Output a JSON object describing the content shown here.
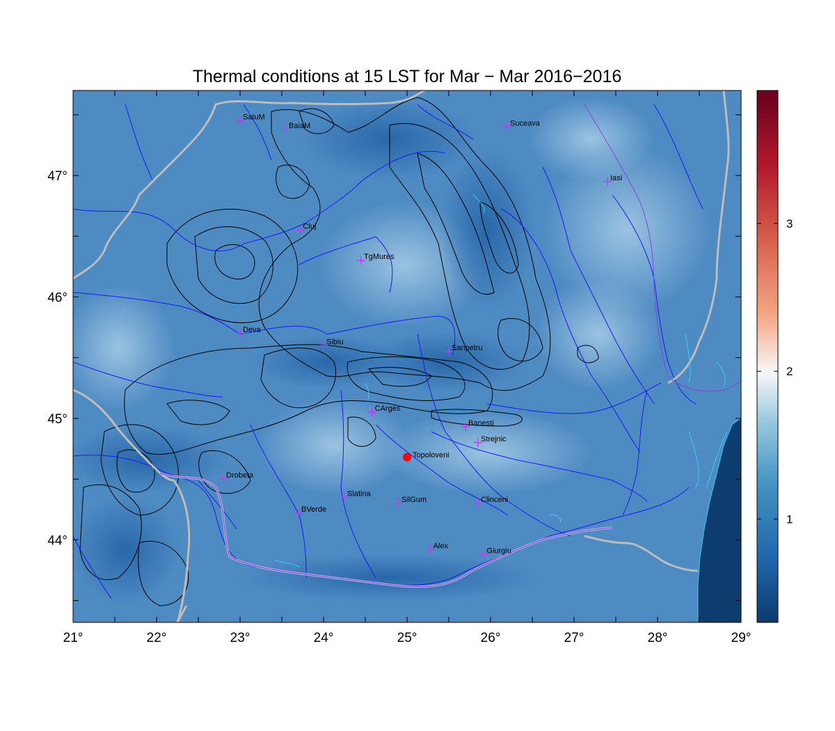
{
  "title": "Thermal conditions at 15 LST for Mar − Mar  2016−2016",
  "map": {
    "lon_range": [
      21,
      29
    ],
    "lat_range": [
      43.32,
      47.7
    ],
    "x_ticks": [
      {
        "value": 21,
        "label": "21°"
      },
      {
        "value": 22,
        "label": "22°"
      },
      {
        "value": 23,
        "label": "23°"
      },
      {
        "value": 24,
        "label": "24°"
      },
      {
        "value": 25,
        "label": "25°"
      },
      {
        "value": 26,
        "label": "26°"
      },
      {
        "value": 27,
        "label": "27°"
      },
      {
        "value": 28,
        "label": "28°"
      },
      {
        "value": 29,
        "label": "29°"
      }
    ],
    "y_ticks": [
      {
        "value": 44,
        "label": "44°"
      },
      {
        "value": 45,
        "label": "45°"
      },
      {
        "value": 46,
        "label": "46°"
      },
      {
        "value": 47,
        "label": "47°"
      }
    ],
    "stations": [
      {
        "name": "SatuM",
        "lon": 23.0,
        "lat": 47.45
      },
      {
        "name": "BaiaM",
        "lon": 23.55,
        "lat": 47.38
      },
      {
        "name": "Suceava",
        "lon": 26.2,
        "lat": 47.4
      },
      {
        "name": "Iasi",
        "lon": 27.4,
        "lat": 46.95
      },
      {
        "name": "Cluj",
        "lon": 23.72,
        "lat": 46.55
      },
      {
        "name": "TgMures",
        "lon": 24.45,
        "lat": 46.3
      },
      {
        "name": "Deva",
        "lon": 23.0,
        "lat": 45.7
      },
      {
        "name": "Sibiu",
        "lon": 24.0,
        "lat": 45.6
      },
      {
        "name": "Sanpetru",
        "lon": 25.5,
        "lat": 45.55
      },
      {
        "name": "CArges",
        "lon": 24.58,
        "lat": 45.05
      },
      {
        "name": "Banesti",
        "lon": 25.7,
        "lat": 44.93
      },
      {
        "name": "Strejnic",
        "lon": 25.85,
        "lat": 44.8
      },
      {
        "name": "Drobeta",
        "lon": 22.8,
        "lat": 44.5
      },
      {
        "name": "Slatina",
        "lon": 24.25,
        "lat": 44.35
      },
      {
        "name": "SilGum",
        "lon": 24.9,
        "lat": 44.3
      },
      {
        "name": "Clinceni",
        "lon": 25.85,
        "lat": 44.3
      },
      {
        "name": "BVerde",
        "lon": 23.7,
        "lat": 44.22
      },
      {
        "name": "Alex",
        "lon": 25.28,
        "lat": 43.92
      },
      {
        "name": "Giurgiu",
        "lon": 25.92,
        "lat": 43.88
      }
    ],
    "highlight": {
      "name": "Topoloveni",
      "lon": 25.0,
      "lat": 44.68,
      "color": "#ff0000"
    },
    "colors": {
      "station_marker": "#cc33ff",
      "rivers": "#1a1aff",
      "borders": "#bcbcbc",
      "sea_coast": "#33ccff",
      "contours": "#000000",
      "field_base": "#4f8bc3",
      "sea": "#0d3c6e"
    }
  },
  "colorbar": {
    "ticks": [
      {
        "value": 1,
        "label": "1"
      },
      {
        "value": 2,
        "label": "2"
      },
      {
        "value": 3,
        "label": "3"
      }
    ],
    "range": [
      0.3,
      3.9
    ],
    "stops": [
      "#0b3b6e",
      "#2166ac",
      "#4393c3",
      "#92c5de",
      "#f7f7f7",
      "#f4a582",
      "#d6604d",
      "#b2182b",
      "#67001f"
    ]
  }
}
